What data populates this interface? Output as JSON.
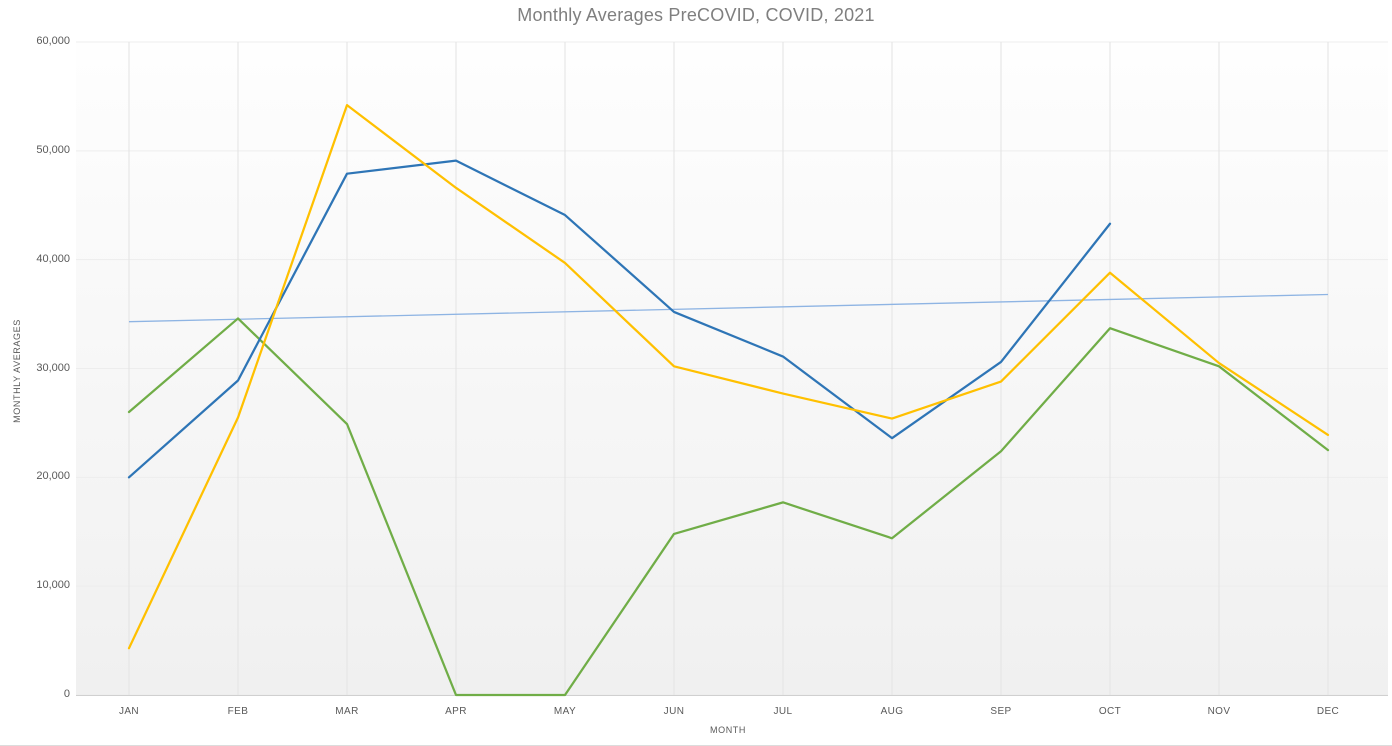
{
  "chart_data": {
    "type": "line",
    "title": "Monthly Averages PreCOVID, COVID, 2021",
    "xlabel": "MONTH",
    "ylabel": "MONTHLY AVERAGES",
    "ylim": [
      0,
      60000
    ],
    "y_ticks": [
      0,
      10000,
      20000,
      30000,
      40000,
      50000,
      60000
    ],
    "categories": [
      "JAN",
      "FEB",
      "MAR",
      "APR",
      "MAY",
      "JUN",
      "JUL",
      "AUG",
      "SEP",
      "OCT",
      "NOV",
      "DEC"
    ],
    "legend_position": "none",
    "grid": {
      "vertical": true,
      "horizontal": "faint"
    },
    "series": [
      {
        "name": "series-green",
        "color": "#70AD47",
        "values": [
          26000,
          34600,
          24900,
          0,
          0,
          14800,
          17700,
          14400,
          22400,
          33700,
          30200,
          22500
        ]
      },
      {
        "name": "series-blue",
        "color": "#2E75B6",
        "values": [
          20000,
          28900,
          47900,
          49100,
          44100,
          35200,
          31100,
          23600,
          30600,
          43300,
          null,
          null
        ]
      },
      {
        "name": "series-yellow",
        "color": "#FFC000",
        "values": [
          4300,
          25500,
          54200,
          46600,
          39700,
          30200,
          27700,
          25400,
          28800,
          38800,
          30500,
          23900
        ]
      }
    ],
    "trendline": {
      "name": "trendline-light-blue",
      "color": "#8EB4E3",
      "start_value": 34300,
      "end_value": 36800
    }
  },
  "colors": {
    "plot_bg_top": "#fefefe",
    "plot_bg_bottom": "#f0f0f0",
    "vertical_gridline": "#e3e3e3",
    "horizontal_gridline": "#ededed",
    "axis_line": "#d0d0d0",
    "title_text": "#7f7f7f",
    "tick_text": "#595959"
  }
}
